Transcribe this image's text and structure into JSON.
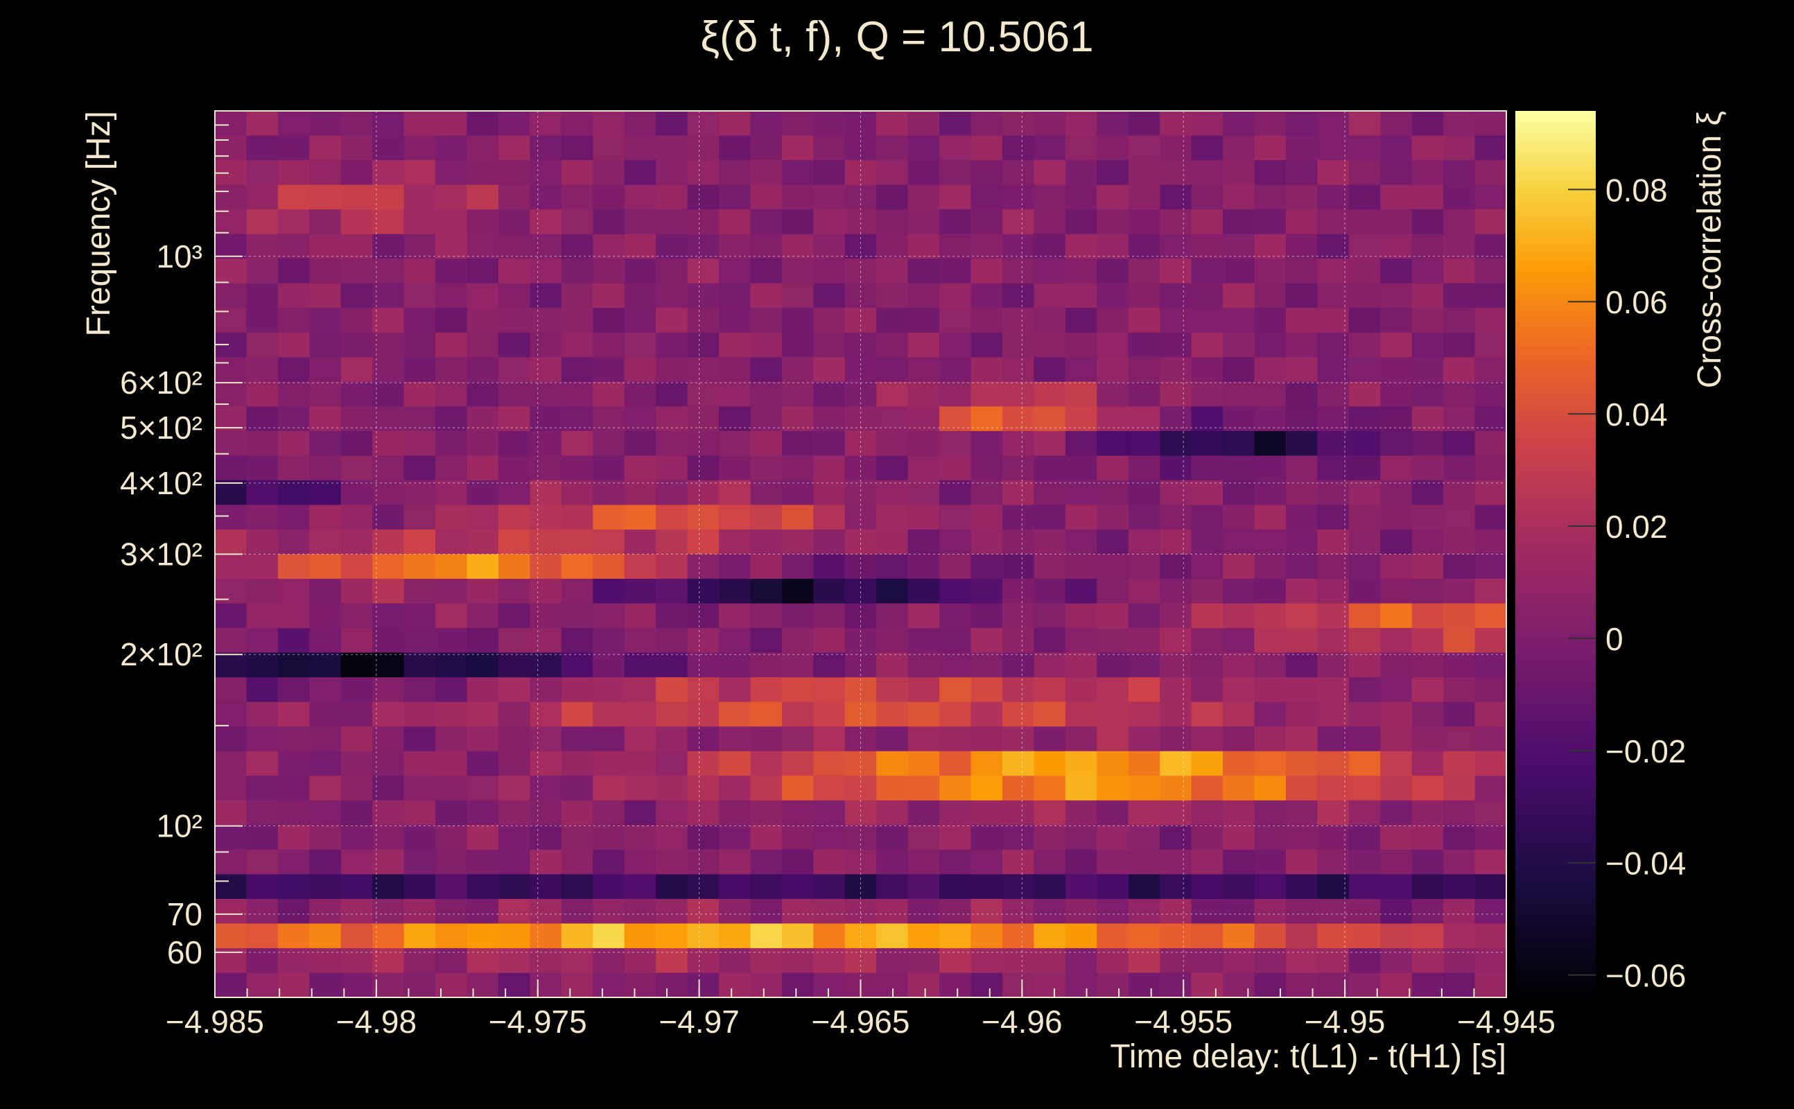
{
  "chart_data": {
    "type": "heatmap",
    "title": "ξ(δ t, f), Q = 10.5061",
    "xlabel": "Time delay: t(L1) - t(H1) [s]",
    "ylabel": "Frequency [Hz]",
    "colorbar_label": "Cross-correlation ξ",
    "xlim": [
      -4.985,
      -4.945
    ],
    "ylim_hz": [
      50,
      1800
    ],
    "y_scale": "log",
    "x_ticks": [
      {
        "value": -4.985,
        "label": "−4.985"
      },
      {
        "value": -4.98,
        "label": "−4.98"
      },
      {
        "value": -4.975,
        "label": "−4.975"
      },
      {
        "value": -4.97,
        "label": "−4.97"
      },
      {
        "value": -4.965,
        "label": "−4.965"
      },
      {
        "value": -4.96,
        "label": "−4.96"
      },
      {
        "value": -4.955,
        "label": "−4.955"
      },
      {
        "value": -4.95,
        "label": "−4.95"
      },
      {
        "value": -4.945,
        "label": "−4.945"
      }
    ],
    "y_ticks": [
      {
        "value": 60,
        "label": "60"
      },
      {
        "value": 70,
        "label": "70"
      },
      {
        "value": 100,
        "label": "10²"
      },
      {
        "value": 200,
        "label": "2×10²"
      },
      {
        "value": 300,
        "label": "3×10²"
      },
      {
        "value": 400,
        "label": "4×10²"
      },
      {
        "value": 500,
        "label": "5×10²"
      },
      {
        "value": 600,
        "label": "6×10²"
      },
      {
        "value": 1000,
        "label": "10³"
      }
    ],
    "colorbar_range": [
      -0.064,
      0.094
    ],
    "colorbar_ticks": [
      {
        "value": 0.08,
        "label": "0.08"
      },
      {
        "value": 0.06,
        "label": "0.06"
      },
      {
        "value": 0.04,
        "label": "0.04"
      },
      {
        "value": 0.02,
        "label": "0.02"
      },
      {
        "value": 0,
        "label": "0"
      },
      {
        "value": -0.02,
        "label": "−0.02"
      },
      {
        "value": -0.04,
        "label": "−0.04"
      },
      {
        "value": -0.06,
        "label": "−0.06"
      }
    ],
    "colormap": "inferno",
    "grid": true,
    "columns": 41,
    "rows": 36
  }
}
